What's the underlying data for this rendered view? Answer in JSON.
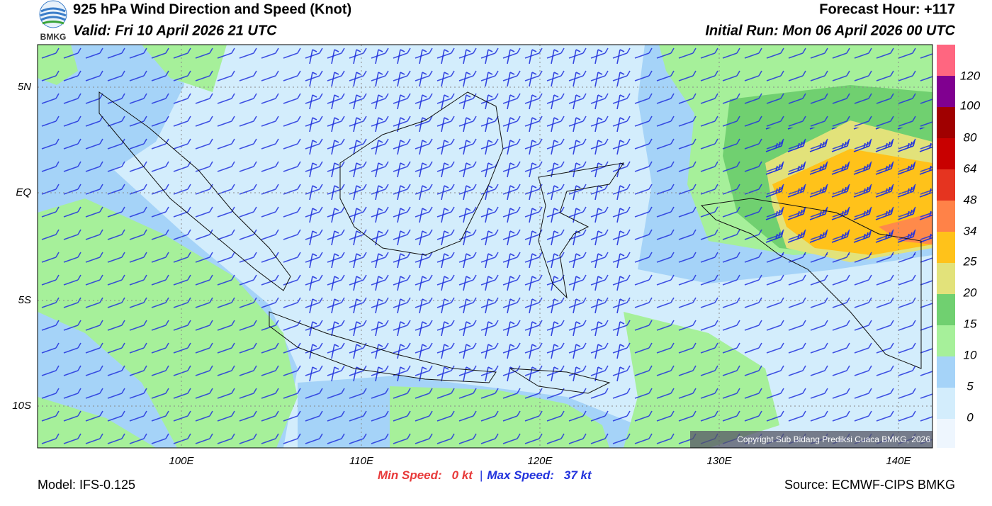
{
  "header": {
    "title": "925 hPa Wind Direction and Speed (Knot)",
    "valid": "Valid: Fri 10 April 2026 21 UTC",
    "forecast_hour": "Forecast Hour: +117",
    "initial_run": "Initial Run: Mon 06 April 2026 00 UTC",
    "logo_text": "BMKG"
  },
  "axes": {
    "lat_labels": [
      "5N",
      "EQ",
      "5S",
      "10S"
    ],
    "lon_labels": [
      "100E",
      "110E",
      "120E",
      "130E",
      "140E"
    ]
  },
  "colorbar": {
    "labels": [
      "0",
      "5",
      "10",
      "15",
      "20",
      "25",
      "34",
      "48",
      "64",
      "80",
      "100",
      "120"
    ]
  },
  "footer": {
    "min_speed_label": "Min Speed:",
    "min_speed": "0 kt",
    "separator": "|",
    "max_speed_label": "Max Speed:",
    "max_speed": "37 kt",
    "model": "Model: IFS-0.125",
    "source": "Source: ECMWF-CIPS BMKG"
  },
  "copyright": "Copyright Sub Bidang Prediksi Cuaca BMKG, 2026"
}
